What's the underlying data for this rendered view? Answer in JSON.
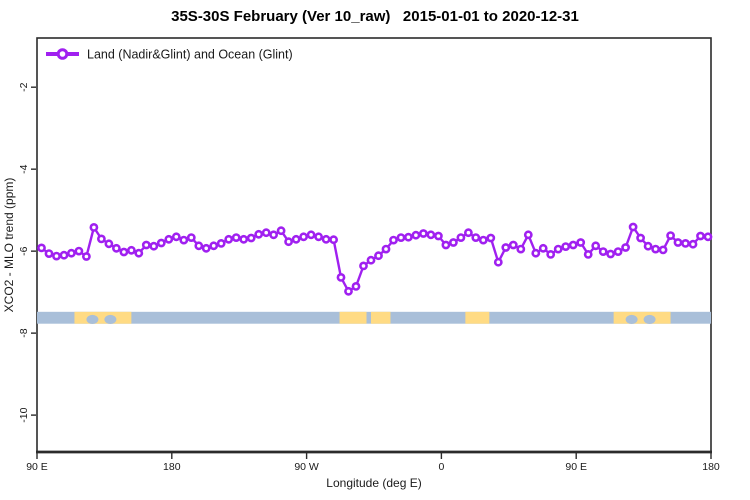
{
  "title": "35S-30S February (Ver 10_raw)   2015-01-01 to 2020-12-31",
  "legend": {
    "label": "Land (Nadir&Glint) and Ocean (Glint)"
  },
  "colors": {
    "series": "#A020F0",
    "marker_fill": "#ffffff",
    "ocean_band": "#A9BFD9",
    "land_band": "#FFDB84",
    "axis": "#2b2b2b",
    "text": "#1a1a1a"
  },
  "chart_data": {
    "type": "line",
    "title": "35S-30S February (Ver 10_raw)   2015-01-01 to 2020-12-31",
    "xlabel": "Longitude (deg E)",
    "ylabel": "XCO2 - MLO trend (ppm)",
    "xlim": [
      90,
      540
    ],
    "ylim": [
      -10.9,
      -0.8
    ],
    "grid": false,
    "legend_position": "top-left-inside",
    "x_ticks": [
      {
        "lon": 90,
        "label": "90 E"
      },
      {
        "lon": 180,
        "label": "180"
      },
      {
        "lon": 270,
        "label": "90 W"
      },
      {
        "lon": 360,
        "label": "0"
      },
      {
        "lon": 450,
        "label": "90 E"
      },
      {
        "lon": 540,
        "label": "180"
      }
    ],
    "y_ticks": [
      {
        "value": -2,
        "label": "-2"
      },
      {
        "value": -4,
        "label": "-4"
      },
      {
        "value": -6,
        "label": "-6"
      },
      {
        "value": -8,
        "label": "-8"
      },
      {
        "value": -10,
        "label": "-10"
      }
    ],
    "series": [
      {
        "name": "Land (Nadir&Glint) and Ocean (Glint)",
        "marker": "open-circle",
        "x": [
          93,
          98,
          103,
          108,
          113,
          118,
          123,
          128,
          133,
          138,
          143,
          148,
          153,
          158,
          163,
          168,
          173,
          178,
          183,
          188,
          193,
          198,
          203,
          208,
          213,
          218,
          223,
          228,
          233,
          238,
          243,
          248,
          253,
          258,
          263,
          268,
          273,
          278,
          283,
          288,
          293,
          298,
          303,
          308,
          313,
          318,
          323,
          328,
          333,
          338,
          343,
          348,
          353,
          358,
          363,
          368,
          373,
          378,
          383,
          388,
          393,
          398,
          403,
          408,
          413,
          418,
          423,
          428,
          433,
          438,
          443,
          448,
          453,
          458,
          463,
          468,
          473,
          478,
          483,
          488,
          493,
          498,
          503,
          508,
          513,
          518,
          523,
          528,
          533,
          538
        ],
        "y": [
          -5.92,
          -6.06,
          -6.12,
          -6.1,
          -6.05,
          -6.0,
          -6.13,
          -5.42,
          -5.7,
          -5.82,
          -5.93,
          -6.02,
          -5.98,
          -6.05,
          -5.85,
          -5.88,
          -5.8,
          -5.71,
          -5.65,
          -5.73,
          -5.67,
          -5.87,
          -5.93,
          -5.87,
          -5.81,
          -5.71,
          -5.67,
          -5.71,
          -5.68,
          -5.59,
          -5.55,
          -5.6,
          -5.5,
          -5.77,
          -5.71,
          -5.65,
          -5.6,
          -5.65,
          -5.71,
          -5.72,
          -6.64,
          -6.98,
          -6.86,
          -6.36,
          -6.22,
          -6.11,
          -5.95,
          -5.73,
          -5.67,
          -5.66,
          -5.61,
          -5.57,
          -5.6,
          -5.63,
          -5.85,
          -5.79,
          -5.67,
          -5.55,
          -5.67,
          -5.73,
          -5.68,
          -6.27,
          -5.91,
          -5.85,
          -5.95,
          -5.6,
          -6.05,
          -5.93,
          -6.08,
          -5.95,
          -5.89,
          -5.85,
          -5.79,
          -6.08,
          -5.87,
          -6.01,
          -6.07,
          -6.01,
          -5.91,
          -5.41,
          -5.68,
          -5.88,
          -5.95,
          -5.97,
          -5.62,
          -5.79,
          -5.81,
          -5.83,
          -5.63,
          -5.65
        ]
      }
    ],
    "map_band": {
      "description": "land/ocean strip for the 35S-30S latitude band",
      "y_range": [
        -7.48,
        -7.77
      ],
      "ocean_color": "#A9BFD9",
      "land_color": "#FFDB84",
      "land_segments_lon": [
        [
          115,
          153
        ],
        [
          292,
          310
        ],
        [
          313,
          326
        ],
        [
          376,
          392
        ],
        [
          475,
          513
        ]
      ],
      "lakes_lon": [
        [
          123,
          131
        ],
        [
          135,
          143
        ],
        [
          483,
          491
        ],
        [
          495,
          503
        ]
      ]
    }
  }
}
